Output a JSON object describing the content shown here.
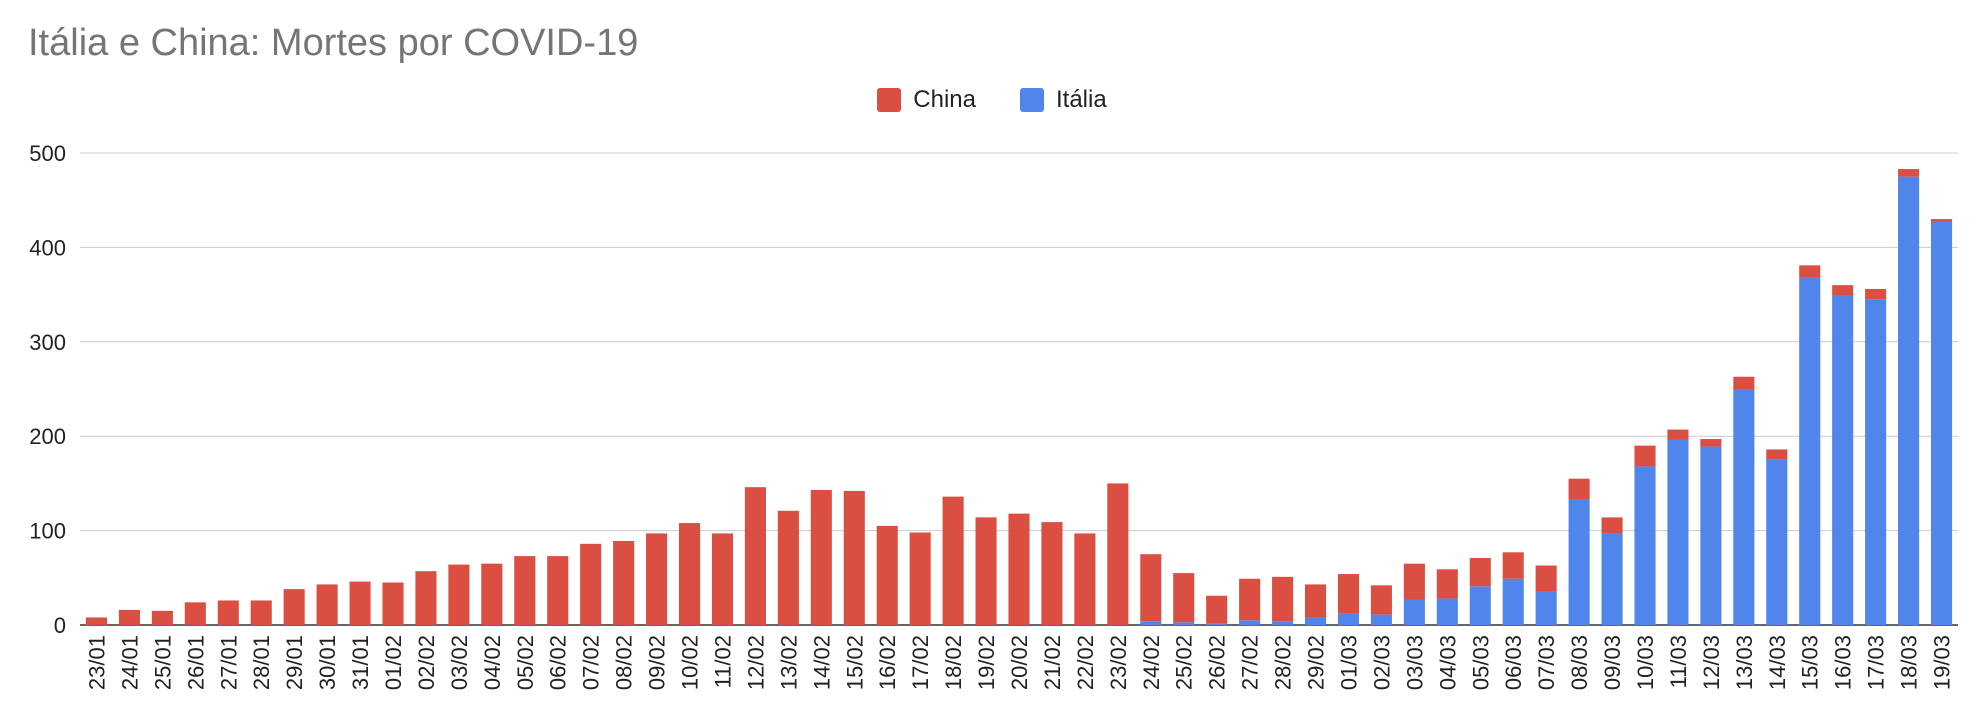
{
  "chart_data": {
    "type": "bar",
    "stacked": true,
    "title": "Itália e China: Mortes por COVID-19",
    "xlabel": "",
    "ylabel": "",
    "ylim": [
      0,
      500
    ],
    "yticks": [
      0,
      100,
      200,
      300,
      400,
      500
    ],
    "grid": true,
    "legend_position": "top",
    "categories": [
      "23/01",
      "24/01",
      "25/01",
      "26/01",
      "27/01",
      "28/01",
      "29/01",
      "30/01",
      "31/01",
      "01/02",
      "02/02",
      "03/02",
      "04/02",
      "05/02",
      "06/02",
      "07/02",
      "08/02",
      "09/02",
      "10/02",
      "11/02",
      "12/02",
      "13/02",
      "14/02",
      "15/02",
      "16/02",
      "17/02",
      "18/02",
      "19/02",
      "20/02",
      "21/02",
      "22/02",
      "23/02",
      "24/02",
      "25/02",
      "26/02",
      "27/02",
      "28/02",
      "29/02",
      "01/03",
      "02/03",
      "03/03",
      "04/03",
      "05/03",
      "06/03",
      "07/03",
      "08/03",
      "09/03",
      "10/03",
      "11/03",
      "12/03",
      "13/03",
      "14/03",
      "15/03",
      "16/03",
      "17/03",
      "18/03",
      "19/03"
    ],
    "series": [
      {
        "name": "Itália",
        "color": "#5086EB",
        "values": [
          0,
          0,
          0,
          0,
          0,
          0,
          0,
          0,
          0,
          0,
          0,
          0,
          0,
          0,
          0,
          0,
          0,
          0,
          0,
          0,
          0,
          0,
          0,
          0,
          0,
          0,
          0,
          0,
          0,
          0,
          0,
          0,
          4,
          3,
          2,
          5,
          4,
          8,
          12,
          11,
          27,
          28,
          41,
          49,
          36,
          133,
          97,
          168,
          196,
          189,
          250,
          175,
          368,
          349,
          345,
          475,
          427
        ]
      },
      {
        "name": "China",
        "color": "#DB4F43",
        "values": [
          8,
          16,
          15,
          24,
          26,
          26,
          38,
          43,
          46,
          45,
          57,
          64,
          65,
          73,
          73,
          86,
          89,
          97,
          108,
          97,
          146,
          121,
          143,
          142,
          105,
          98,
          136,
          114,
          118,
          109,
          97,
          150,
          71,
          52,
          29,
          44,
          47,
          35,
          42,
          31,
          38,
          31,
          30,
          28,
          27,
          22,
          17,
          22,
          11,
          8,
          13,
          11,
          13,
          11,
          11,
          8,
          3
        ]
      }
    ]
  }
}
